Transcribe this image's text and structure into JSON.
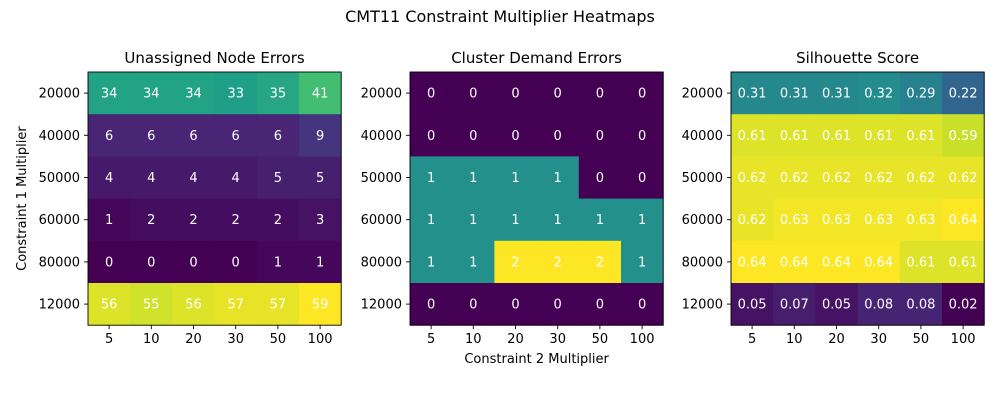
{
  "figure": {
    "suptitle": "CMT11 Constraint Multiplier Heatmaps"
  },
  "chart_data": [
    {
      "type": "heatmap",
      "title": "Unassigned Node Errors",
      "xlabel": "",
      "ylabel": "Constraint 1 Multiplier",
      "x_categories": [
        "5",
        "10",
        "20",
        "30",
        "50",
        "100"
      ],
      "y_categories": [
        "20000",
        "40000",
        "50000",
        "60000",
        "80000",
        "12000"
      ],
      "value_range": [
        0,
        59
      ],
      "colormap": "viridis",
      "values": [
        [
          34,
          34,
          34,
          33,
          35,
          41
        ],
        [
          6,
          6,
          6,
          6,
          6,
          9
        ],
        [
          4,
          4,
          4,
          4,
          5,
          5
        ],
        [
          1,
          2,
          2,
          2,
          2,
          3
        ],
        [
          0,
          0,
          0,
          0,
          1,
          1
        ],
        [
          56,
          55,
          56,
          57,
          57,
          59
        ]
      ],
      "labels": [
        [
          "34",
          "34",
          "34",
          "33",
          "35",
          "41"
        ],
        [
          "6",
          "6",
          "6",
          "6",
          "6",
          "9"
        ],
        [
          "4",
          "4",
          "4",
          "4",
          "5",
          "5"
        ],
        [
          "1",
          "2",
          "2",
          "2",
          "2",
          "3"
        ],
        [
          "0",
          "0",
          "0",
          "0",
          "1",
          "1"
        ],
        [
          "56",
          "55",
          "56",
          "57",
          "57",
          "59"
        ]
      ]
    },
    {
      "type": "heatmap",
      "title": "Cluster Demand Errors",
      "xlabel": "Constraint 2 Multiplier",
      "ylabel": "",
      "x_categories": [
        "5",
        "10",
        "20",
        "30",
        "50",
        "100"
      ],
      "y_categories": [
        "20000",
        "40000",
        "50000",
        "60000",
        "80000",
        "12000"
      ],
      "value_range": [
        0,
        2
      ],
      "colormap": "viridis",
      "values": [
        [
          0,
          0,
          0,
          0,
          0,
          0
        ],
        [
          0,
          0,
          0,
          0,
          0,
          0
        ],
        [
          1,
          1,
          1,
          1,
          0,
          0
        ],
        [
          1,
          1,
          1,
          1,
          1,
          1
        ],
        [
          1,
          1,
          2,
          2,
          2,
          1
        ],
        [
          0,
          0,
          0,
          0,
          0,
          0
        ]
      ],
      "labels": [
        [
          "0",
          "0",
          "0",
          "0",
          "0",
          "0"
        ],
        [
          "0",
          "0",
          "0",
          "0",
          "0",
          "0"
        ],
        [
          "1",
          "1",
          "1",
          "1",
          "0",
          "0"
        ],
        [
          "1",
          "1",
          "1",
          "1",
          "1",
          "1"
        ],
        [
          "1",
          "1",
          "2",
          "2",
          "2",
          "1"
        ],
        [
          "0",
          "0",
          "0",
          "0",
          "0",
          "0"
        ]
      ]
    },
    {
      "type": "heatmap",
      "title": "Silhouette Score",
      "xlabel": "",
      "ylabel": "",
      "x_categories": [
        "5",
        "10",
        "20",
        "30",
        "50",
        "100"
      ],
      "y_categories": [
        "20000",
        "40000",
        "50000",
        "60000",
        "80000",
        "12000"
      ],
      "value_range": [
        0.02,
        0.64
      ],
      "colormap": "viridis",
      "values": [
        [
          0.31,
          0.31,
          0.31,
          0.32,
          0.29,
          0.22
        ],
        [
          0.61,
          0.61,
          0.61,
          0.61,
          0.61,
          0.59
        ],
        [
          0.62,
          0.62,
          0.62,
          0.62,
          0.62,
          0.62
        ],
        [
          0.62,
          0.63,
          0.63,
          0.63,
          0.63,
          0.64
        ],
        [
          0.64,
          0.64,
          0.64,
          0.64,
          0.61,
          0.61
        ],
        [
          0.05,
          0.07,
          0.05,
          0.08,
          0.08,
          0.02
        ]
      ],
      "labels": [
        [
          "0.31",
          "0.31",
          "0.31",
          "0.32",
          "0.29",
          "0.22"
        ],
        [
          "0.61",
          "0.61",
          "0.61",
          "0.61",
          "0.61",
          "0.59"
        ],
        [
          "0.62",
          "0.62",
          "0.62",
          "0.62",
          "0.62",
          "0.62"
        ],
        [
          "0.62",
          "0.63",
          "0.63",
          "0.63",
          "0.63",
          "0.64"
        ],
        [
          "0.64",
          "0.64",
          "0.64",
          "0.64",
          "0.61",
          "0.61"
        ],
        [
          "0.05",
          "0.07",
          "0.05",
          "0.08",
          "0.08",
          "0.02"
        ]
      ]
    }
  ]
}
